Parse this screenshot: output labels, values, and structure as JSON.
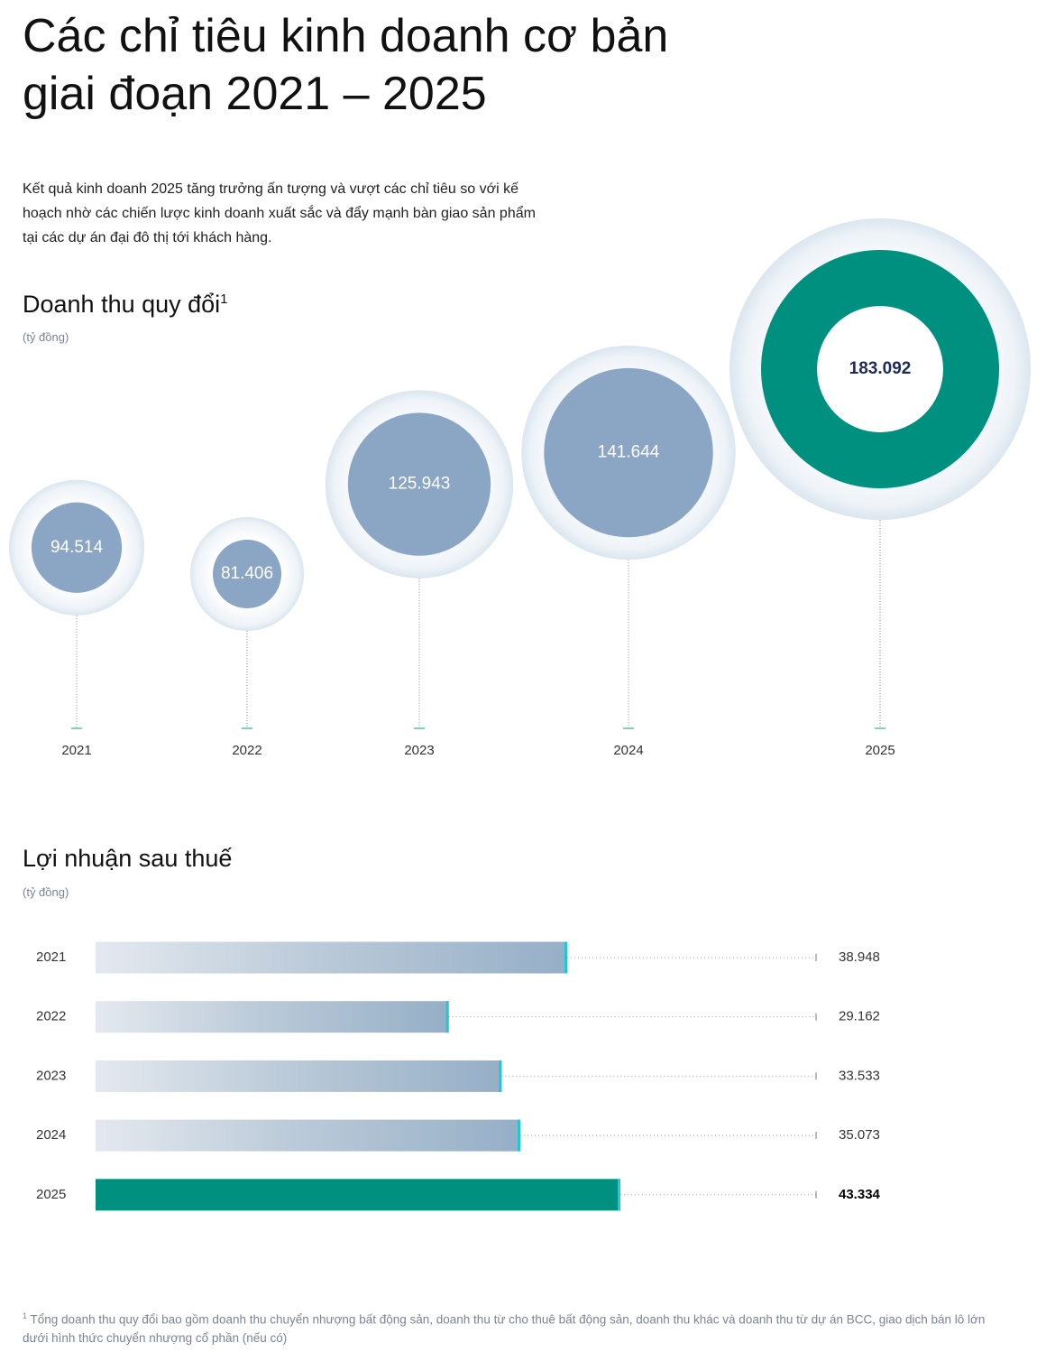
{
  "header": {
    "title_lines": [
      "Các chỉ tiêu kinh doanh cơ bản",
      "giai đoạn 2021 – 2025"
    ],
    "intro": "Kết quả kinh doanh 2025 tăng trưởng ấn tượng và vượt các chỉ tiêu so với kế hoạch nhờ các chiến lược kinh doanh xuất sắc và đẩy mạnh bàn giao sản phẩm tại các dự án đại đô thị tới khách hàng."
  },
  "chart_data": [
    {
      "type": "bubble",
      "title": "Doanh thu quy đổi",
      "footnote_ref": "1",
      "subtitle": "(tỷ đồng)",
      "categories": [
        "2021",
        "2022",
        "2023",
        "2024",
        "2025"
      ],
      "values": [
        94514,
        81406,
        125943,
        141644,
        183092
      ],
      "value_labels": [
        "94.514",
        "81.406",
        "125.943",
        "141.644",
        "183.092"
      ],
      "colors": [
        "#8ba6c4",
        "#8ba6c4",
        "#8ba6c4",
        "#8ba6c4",
        "#00907f"
      ],
      "highlight_color": "#00907f"
    },
    {
      "type": "hbar",
      "title": "Lợi nhuận sau thuế",
      "subtitle": "(tỷ đồng)",
      "categories": [
        "2021",
        "2022",
        "2023",
        "2024",
        "2025"
      ],
      "values": [
        38948,
        29162,
        33533,
        35073,
        43334
      ],
      "value_labels": [
        "38.948",
        "29.162",
        "33.533",
        "35.073",
        "43.334"
      ],
      "colors": [
        "#95afc7",
        "#95afc7",
        "#95afc7",
        "#95afc7",
        "#00907f"
      ],
      "highlight_color": "#00907f"
    }
  ],
  "footnote": {
    "marker": "1",
    "text": "Tổng doanh thu quy đổi bao gồm doanh thu chuyển nhượng bất động sản, doanh thu từ cho thuê bất động sản, doanh thu khác và doanh thu từ dự án BCC, giao dịch bán lô lớn dưới hình thức chuyển nhượng cổ phần (nếu có)"
  }
}
